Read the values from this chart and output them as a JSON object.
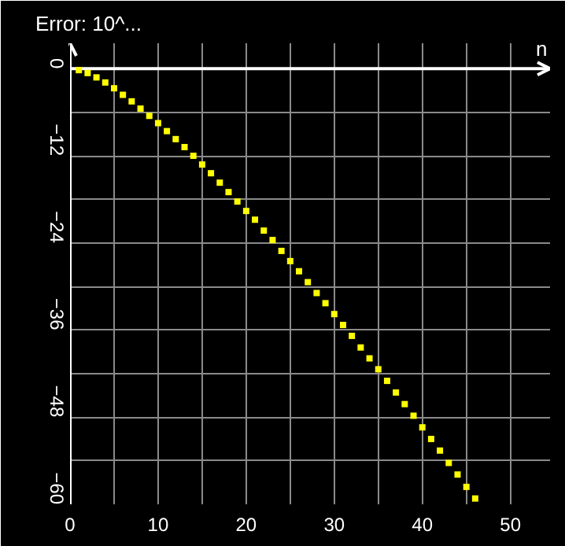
{
  "chart_data": {
    "type": "scatter",
    "title": "Error: 10^...",
    "xlabel": "n",
    "x": [
      1,
      2,
      3,
      4,
      5,
      6,
      7,
      8,
      9,
      10,
      11,
      12,
      13,
      14,
      15,
      16,
      17,
      18,
      19,
      20,
      21,
      22,
      23,
      24,
      25,
      26,
      27,
      28,
      29,
      30,
      31,
      32,
      33,
      34,
      35,
      36,
      37,
      38,
      39,
      40,
      41,
      42,
      43,
      44,
      45,
      46
    ],
    "series": [
      {
        "color": "#ffff00",
        "values": [
          -0.2,
          -0.6,
          -1.2,
          -1.9,
          -2.7,
          -3.6,
          -4.5,
          -5.5,
          -6.5,
          -7.5,
          -8.6,
          -9.7,
          -10.8,
          -12.0,
          -13.2,
          -14.4,
          -15.7,
          -17.0,
          -18.3,
          -19.6,
          -20.8,
          -22.3,
          -23.6,
          -25.1,
          -26.5,
          -27.9,
          -29.4,
          -30.9,
          -32.3,
          -33.8,
          -35.3,
          -36.8,
          -38.4,
          -39.9,
          -41.4,
          -43.0,
          -44.6,
          -46.2,
          -47.8,
          -49.4,
          -51.0,
          -52.6,
          -54.3,
          -55.9,
          -57.6,
          -59.2
        ]
      }
    ],
    "xlim": [
      0,
      54.5
    ],
    "ylim": [
      -60,
      3.5
    ],
    "xticks": [
      0,
      10,
      20,
      30,
      40,
      50
    ],
    "yticks": [
      0,
      -12,
      -24,
      -36,
      -48,
      -60
    ],
    "grid": true,
    "marker": "square"
  }
}
